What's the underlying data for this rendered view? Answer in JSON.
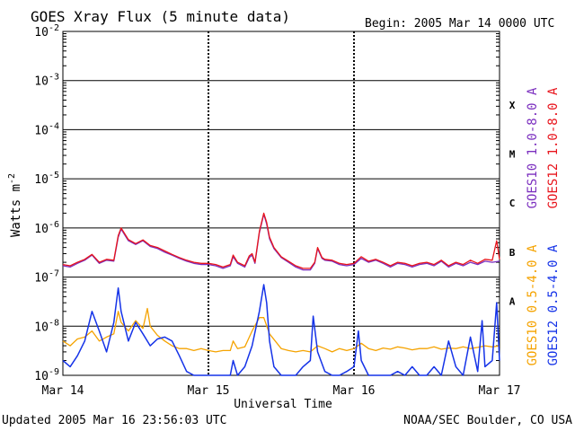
{
  "chart_data": {
    "type": "line",
    "title": "GOES Xray Flux (5 minute data)",
    "begin_label": "Begin:  2005 Mar 14 0000 UTC",
    "xlabel": "Universal Time",
    "ylabel": "Watts m",
    "ylabel_exponent": "-2",
    "y_scale": "log",
    "ylim": [
      1e-09,
      0.01
    ],
    "y_ticks": [
      {
        "base": "10",
        "exp": "-2",
        "value": 0.01
      },
      {
        "base": "10",
        "exp": "-3",
        "value": 0.001
      },
      {
        "base": "10",
        "exp": "-4",
        "value": 0.0001
      },
      {
        "base": "10",
        "exp": "-5",
        "value": 1e-05
      },
      {
        "base": "10",
        "exp": "-6",
        "value": 1e-06
      },
      {
        "base": "10",
        "exp": "-7",
        "value": 1e-07
      },
      {
        "base": "10",
        "exp": "-8",
        "value": 1e-08
      },
      {
        "base": "10",
        "exp": "-9",
        "value": 1e-09
      }
    ],
    "xlim_days": [
      0,
      3
    ],
    "x_ticks": [
      {
        "label": "Mar 14",
        "day": 0
      },
      {
        "label": "Mar 15",
        "day": 1
      },
      {
        "label": "Mar 16",
        "day": 2
      },
      {
        "label": "Mar 17",
        "day": 3
      }
    ],
    "flare_classes": [
      {
        "label": "X",
        "value": 0.00032
      },
      {
        "label": "M",
        "value": 3.2e-05
      },
      {
        "label": "C",
        "value": 3.2e-06
      },
      {
        "label": "B",
        "value": 3.2e-07
      },
      {
        "label": "A",
        "value": 3.2e-08
      }
    ],
    "grid": true,
    "legend_right": [
      {
        "name": "GOES10 1.0-8.0 A",
        "color": "#7b2fbf"
      },
      {
        "name": "GOES12 1.0-8.0 A",
        "color": "#e8141c"
      },
      {
        "name": "GOES10 0.5-4.0 A",
        "color": "#f5a300"
      },
      {
        "name": "GOES12 0.5-4.0 A",
        "color": "#1533e8"
      }
    ],
    "series": [
      {
        "name": "GOES10 1.0-8.0 A",
        "color": "#7b2fbf",
        "points": [
          [
            0,
            1.7e-07
          ],
          [
            0.05,
            1.6e-07
          ],
          [
            0.1,
            1.9e-07
          ],
          [
            0.15,
            2.2e-07
          ],
          [
            0.2,
            2.8e-07
          ],
          [
            0.25,
            1.9e-07
          ],
          [
            0.3,
            2.2e-07
          ],
          [
            0.35,
            2.1e-07
          ],
          [
            0.38,
            6.5e-07
          ],
          [
            0.4,
            9.5e-07
          ],
          [
            0.45,
            5.5e-07
          ],
          [
            0.5,
            4.6e-07
          ],
          [
            0.55,
            5.5e-07
          ],
          [
            0.6,
            4.2e-07
          ],
          [
            0.65,
            3.8e-07
          ],
          [
            0.7,
            3.2e-07
          ],
          [
            0.75,
            2.8e-07
          ],
          [
            0.8,
            2.4e-07
          ],
          [
            0.85,
            2.1e-07
          ],
          [
            0.9,
            1.9e-07
          ],
          [
            0.95,
            1.8e-07
          ],
          [
            1.0,
            1.8e-07
          ],
          [
            1.05,
            1.7e-07
          ],
          [
            1.1,
            1.5e-07
          ],
          [
            1.15,
            1.7e-07
          ],
          [
            1.17,
            2.6e-07
          ],
          [
            1.2,
            1.9e-07
          ],
          [
            1.25,
            1.6e-07
          ],
          [
            1.28,
            2.5e-07
          ],
          [
            1.3,
            2.8e-07
          ],
          [
            1.32,
            1.9e-07
          ],
          [
            1.35,
            8e-07
          ],
          [
            1.38,
            1.9e-06
          ],
          [
            1.4,
            1.2e-06
          ],
          [
            1.42,
            6e-07
          ],
          [
            1.45,
            3.8e-07
          ],
          [
            1.5,
            2.5e-07
          ],
          [
            1.55,
            2e-07
          ],
          [
            1.6,
            1.6e-07
          ],
          [
            1.65,
            1.4e-07
          ],
          [
            1.7,
            1.4e-07
          ],
          [
            1.73,
            1.9e-07
          ],
          [
            1.75,
            3.8e-07
          ],
          [
            1.78,
            2.4e-07
          ],
          [
            1.8,
            2.2e-07
          ],
          [
            1.85,
            2.1e-07
          ],
          [
            1.9,
            1.8e-07
          ],
          [
            1.95,
            1.7e-07
          ],
          [
            2.0,
            1.8e-07
          ],
          [
            2.05,
            2.4e-07
          ],
          [
            2.1,
            2e-07
          ],
          [
            2.15,
            2.2e-07
          ],
          [
            2.2,
            1.9e-07
          ],
          [
            2.25,
            1.6e-07
          ],
          [
            2.3,
            1.9e-07
          ],
          [
            2.35,
            1.8e-07
          ],
          [
            2.4,
            1.6e-07
          ],
          [
            2.45,
            1.8e-07
          ],
          [
            2.5,
            1.9e-07
          ],
          [
            2.55,
            1.7e-07
          ],
          [
            2.6,
            2.1e-07
          ],
          [
            2.65,
            1.6e-07
          ],
          [
            2.7,
            1.9e-07
          ],
          [
            2.75,
            1.7e-07
          ],
          [
            2.8,
            2e-07
          ],
          [
            2.85,
            1.8e-07
          ],
          [
            2.9,
            2.1e-07
          ],
          [
            2.95,
            2e-07
          ],
          [
            3.0,
            2.1e-07
          ]
        ]
      },
      {
        "name": "GOES12 1.0-8.0 A",
        "color": "#e8141c",
        "points": [
          [
            0,
            1.8e-07
          ],
          [
            0.05,
            1.7e-07
          ],
          [
            0.1,
            2e-07
          ],
          [
            0.15,
            2.3e-07
          ],
          [
            0.2,
            2.9e-07
          ],
          [
            0.25,
            2e-07
          ],
          [
            0.3,
            2.3e-07
          ],
          [
            0.35,
            2.2e-07
          ],
          [
            0.38,
            7e-07
          ],
          [
            0.4,
            1e-06
          ],
          [
            0.45,
            5.8e-07
          ],
          [
            0.5,
            4.8e-07
          ],
          [
            0.55,
            5.7e-07
          ],
          [
            0.6,
            4.4e-07
          ],
          [
            0.65,
            4e-07
          ],
          [
            0.7,
            3.4e-07
          ],
          [
            0.75,
            2.9e-07
          ],
          [
            0.8,
            2.5e-07
          ],
          [
            0.85,
            2.2e-07
          ],
          [
            0.9,
            2e-07
          ],
          [
            0.95,
            1.9e-07
          ],
          [
            1.0,
            1.9e-07
          ],
          [
            1.05,
            1.8e-07
          ],
          [
            1.1,
            1.6e-07
          ],
          [
            1.15,
            1.8e-07
          ],
          [
            1.17,
            2.8e-07
          ],
          [
            1.2,
            2e-07
          ],
          [
            1.25,
            1.7e-07
          ],
          [
            1.28,
            2.7e-07
          ],
          [
            1.3,
            3e-07
          ],
          [
            1.32,
            2e-07
          ],
          [
            1.35,
            8.5e-07
          ],
          [
            1.38,
            2e-06
          ],
          [
            1.4,
            1.3e-06
          ],
          [
            1.42,
            6.5e-07
          ],
          [
            1.45,
            4e-07
          ],
          [
            1.5,
            2.6e-07
          ],
          [
            1.55,
            2.1e-07
          ],
          [
            1.6,
            1.7e-07
          ],
          [
            1.65,
            1.5e-07
          ],
          [
            1.7,
            1.5e-07
          ],
          [
            1.73,
            2e-07
          ],
          [
            1.75,
            4e-07
          ],
          [
            1.78,
            2.5e-07
          ],
          [
            1.8,
            2.3e-07
          ],
          [
            1.85,
            2.2e-07
          ],
          [
            1.9,
            1.9e-07
          ],
          [
            1.95,
            1.8e-07
          ],
          [
            2.0,
            1.9e-07
          ],
          [
            2.05,
            2.6e-07
          ],
          [
            2.1,
            2.1e-07
          ],
          [
            2.15,
            2.3e-07
          ],
          [
            2.2,
            2e-07
          ],
          [
            2.25,
            1.7e-07
          ],
          [
            2.3,
            2e-07
          ],
          [
            2.35,
            1.9e-07
          ],
          [
            2.4,
            1.7e-07
          ],
          [
            2.45,
            1.9e-07
          ],
          [
            2.5,
            2e-07
          ],
          [
            2.55,
            1.8e-07
          ],
          [
            2.6,
            2.2e-07
          ],
          [
            2.65,
            1.7e-07
          ],
          [
            2.7,
            2e-07
          ],
          [
            2.75,
            1.8e-07
          ],
          [
            2.8,
            2.2e-07
          ],
          [
            2.85,
            1.9e-07
          ],
          [
            2.9,
            2.3e-07
          ],
          [
            2.95,
            2.2e-07
          ],
          [
            2.98,
            5.5e-07
          ],
          [
            3.0,
            2.3e-07
          ]
        ]
      },
      {
        "name": "GOES10 0.5-4.0 A",
        "color": "#f5a300",
        "points": [
          [
            0,
            5e-09
          ],
          [
            0.05,
            4e-09
          ],
          [
            0.1,
            5.5e-09
          ],
          [
            0.15,
            6e-09
          ],
          [
            0.2,
            8e-09
          ],
          [
            0.25,
            5e-09
          ],
          [
            0.3,
            6e-09
          ],
          [
            0.35,
            7e-09
          ],
          [
            0.38,
            2e-08
          ],
          [
            0.4,
            1.2e-08
          ],
          [
            0.45,
            8e-09
          ],
          [
            0.5,
            1.3e-08
          ],
          [
            0.55,
            9e-09
          ],
          [
            0.58,
            2.3e-08
          ],
          [
            0.6,
            1e-08
          ],
          [
            0.65,
            6.5e-09
          ],
          [
            0.7,
            5e-09
          ],
          [
            0.75,
            4e-09
          ],
          [
            0.8,
            3.5e-09
          ],
          [
            0.85,
            3.5e-09
          ],
          [
            0.9,
            3.2e-09
          ],
          [
            0.95,
            3.5e-09
          ],
          [
            1.0,
            3.2e-09
          ],
          [
            1.05,
            3e-09
          ],
          [
            1.1,
            3.2e-09
          ],
          [
            1.15,
            3.2e-09
          ],
          [
            1.17,
            5e-09
          ],
          [
            1.2,
            3.5e-09
          ],
          [
            1.25,
            3.8e-09
          ],
          [
            1.3,
            8e-09
          ],
          [
            1.35,
            1.5e-08
          ],
          [
            1.38,
            1.5e-08
          ],
          [
            1.42,
            7e-09
          ],
          [
            1.5,
            3.5e-09
          ],
          [
            1.55,
            3.2e-09
          ],
          [
            1.6,
            3e-09
          ],
          [
            1.65,
            3.2e-09
          ],
          [
            1.7,
            3e-09
          ],
          [
            1.75,
            4e-09
          ],
          [
            1.8,
            3.5e-09
          ],
          [
            1.85,
            3e-09
          ],
          [
            1.9,
            3.5e-09
          ],
          [
            1.95,
            3.2e-09
          ],
          [
            2.0,
            3.5e-09
          ],
          [
            2.05,
            4.5e-09
          ],
          [
            2.1,
            3.5e-09
          ],
          [
            2.15,
            3.2e-09
          ],
          [
            2.2,
            3.6e-09
          ],
          [
            2.25,
            3.4e-09
          ],
          [
            2.3,
            3.8e-09
          ],
          [
            2.35,
            3.6e-09
          ],
          [
            2.4,
            3.3e-09
          ],
          [
            2.45,
            3.5e-09
          ],
          [
            2.5,
            3.5e-09
          ],
          [
            2.55,
            3.8e-09
          ],
          [
            2.6,
            3.4e-09
          ],
          [
            2.65,
            3.6e-09
          ],
          [
            2.7,
            3.5e-09
          ],
          [
            2.75,
            3.8e-09
          ],
          [
            2.8,
            3.5e-09
          ],
          [
            2.85,
            3.7e-09
          ],
          [
            2.9,
            4e-09
          ],
          [
            2.95,
            3.8e-09
          ],
          [
            3.0,
            4e-09
          ]
        ]
      },
      {
        "name": "GOES12 0.5-4.0 A",
        "color": "#1533e8",
        "points": [
          [
            0,
            2e-09
          ],
          [
            0.05,
            1.5e-09
          ],
          [
            0.1,
            2.5e-09
          ],
          [
            0.15,
            5e-09
          ],
          [
            0.2,
            2e-08
          ],
          [
            0.25,
            8e-09
          ],
          [
            0.3,
            3e-09
          ],
          [
            0.35,
            1.2e-08
          ],
          [
            0.38,
            6e-08
          ],
          [
            0.4,
            2e-08
          ],
          [
            0.45,
            5e-09
          ],
          [
            0.5,
            1.2e-08
          ],
          [
            0.55,
            7e-09
          ],
          [
            0.6,
            4e-09
          ],
          [
            0.65,
            5.5e-09
          ],
          [
            0.7,
            6e-09
          ],
          [
            0.75,
            5e-09
          ],
          [
            0.8,
            2.5e-09
          ],
          [
            0.85,
            1.2e-09
          ],
          [
            0.9,
            1e-09
          ],
          [
            0.95,
            1e-09
          ],
          [
            1.0,
            1e-09
          ],
          [
            1.05,
            1e-09
          ],
          [
            1.1,
            1e-09
          ],
          [
            1.15,
            1e-09
          ],
          [
            1.17,
            2e-09
          ],
          [
            1.2,
            1e-09
          ],
          [
            1.25,
            1.5e-09
          ],
          [
            1.3,
            4e-09
          ],
          [
            1.35,
            2e-08
          ],
          [
            1.38,
            7e-08
          ],
          [
            1.4,
            3e-08
          ],
          [
            1.42,
            5e-09
          ],
          [
            1.45,
            1.5e-09
          ],
          [
            1.5,
            1e-09
          ],
          [
            1.55,
            1e-09
          ],
          [
            1.6,
            1e-09
          ],
          [
            1.65,
            1.5e-09
          ],
          [
            1.7,
            2e-09
          ],
          [
            1.72,
            1.6e-08
          ],
          [
            1.75,
            3e-09
          ],
          [
            1.8,
            1.2e-09
          ],
          [
            1.85,
            1e-09
          ],
          [
            1.9,
            1e-09
          ],
          [
            1.95,
            1.2e-09
          ],
          [
            2.0,
            1.5e-09
          ],
          [
            2.03,
            8e-09
          ],
          [
            2.05,
            2e-09
          ],
          [
            2.1,
            1e-09
          ],
          [
            2.15,
            1e-09
          ],
          [
            2.2,
            1e-09
          ],
          [
            2.25,
            1e-09
          ],
          [
            2.3,
            1.2e-09
          ],
          [
            2.35,
            1e-09
          ],
          [
            2.4,
            1.5e-09
          ],
          [
            2.45,
            1e-09
          ],
          [
            2.5,
            1e-09
          ],
          [
            2.55,
            1.5e-09
          ],
          [
            2.6,
            1e-09
          ],
          [
            2.65,
            5e-09
          ],
          [
            2.7,
            1.5e-09
          ],
          [
            2.75,
            1e-09
          ],
          [
            2.8,
            6e-09
          ],
          [
            2.85,
            1.2e-09
          ],
          [
            2.88,
            1.3e-08
          ],
          [
            2.9,
            1.5e-09
          ],
          [
            2.95,
            2e-09
          ],
          [
            2.98,
            3e-08
          ],
          [
            3.0,
            2e-09
          ]
        ]
      }
    ]
  },
  "footer": {
    "updated": "Updated 2005 Mar 16 23:56:03 UTC",
    "credit": "NOAA/SEC Boulder, CO USA"
  }
}
